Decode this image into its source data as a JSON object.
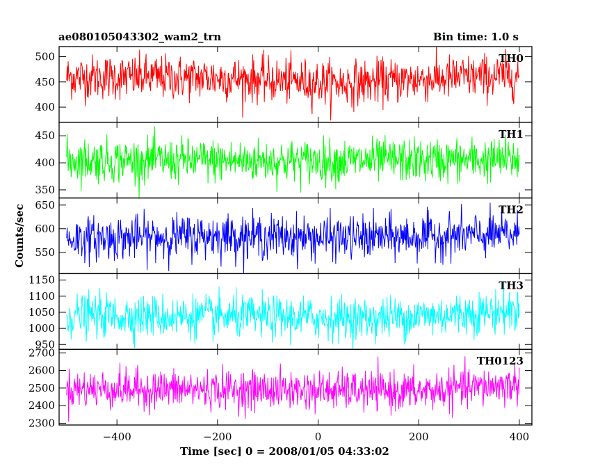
{
  "header": {
    "title": "ae080105043302_wam2_trn",
    "bin_time": "Bin time: 1.0 s"
  },
  "axes": {
    "xlabel": "Time [sec] 0 = 2008/01/05 04:33:02",
    "ylabel": "Counts/sec"
  },
  "chart_data": {
    "type": "line",
    "x_range": [
      -500,
      400
    ],
    "xlim": [
      -515,
      425
    ],
    "x_ticks": [
      -400,
      -200,
      0,
      200,
      400
    ],
    "x_tick_labels": [
      "−400",
      "−200",
      "0",
      "200",
      "400"
    ],
    "bin_size_sec": 1.0,
    "panels": [
      {
        "name": "TH0",
        "color": "#ff0000",
        "ylim": [
          370,
          520
        ],
        "y_ticks": [
          400,
          450,
          500
        ],
        "mean": 457,
        "spread": 22,
        "min": 368,
        "max": 520,
        "trend": [
          [
            -500,
            460
          ],
          [
            -200,
            458
          ],
          [
            50,
            447
          ],
          [
            300,
            460
          ],
          [
            400,
            462
          ]
        ]
      },
      {
        "name": "TH1",
        "color": "#00ff00",
        "ylim": [
          335,
          475
        ],
        "y_ticks": [
          350,
          400,
          450
        ],
        "mean": 405,
        "spread": 20,
        "min": 335,
        "max": 470,
        "trend": [
          [
            -500,
            405
          ],
          [
            0,
            403
          ],
          [
            400,
            406
          ]
        ]
      },
      {
        "name": "TH2",
        "color": "#0000ff",
        "ylim": [
          505,
          665
        ],
        "y_ticks": [
          550,
          600,
          650
        ],
        "mean": 580,
        "spread": 23,
        "min": 505,
        "max": 665,
        "trend": [
          [
            -500,
            578
          ],
          [
            -200,
            585
          ],
          [
            50,
            580
          ],
          [
            400,
            588
          ]
        ]
      },
      {
        "name": "TH3",
        "color": "#00ffff",
        "ylim": [
          935,
          1170
        ],
        "y_ticks": [
          950,
          1000,
          1050,
          1100,
          1150
        ],
        "mean": 1035,
        "spread": 33,
        "min": 935,
        "max": 1160,
        "trend": [
          [
            -500,
            1040
          ],
          [
            -100,
            1035
          ],
          [
            100,
            1030
          ],
          [
            400,
            1055
          ]
        ]
      },
      {
        "name": "TH0123",
        "color": "#ff00ff",
        "ylim": [
          2290,
          2720
        ],
        "y_ticks": [
          2300,
          2400,
          2500,
          2600,
          2700
        ],
        "mean": 2490,
        "spread": 55,
        "min": 2290,
        "max": 2715,
        "trend": [
          [
            -500,
            2495
          ],
          [
            -100,
            2490
          ],
          [
            200,
            2480
          ],
          [
            400,
            2520
          ]
        ]
      }
    ]
  }
}
